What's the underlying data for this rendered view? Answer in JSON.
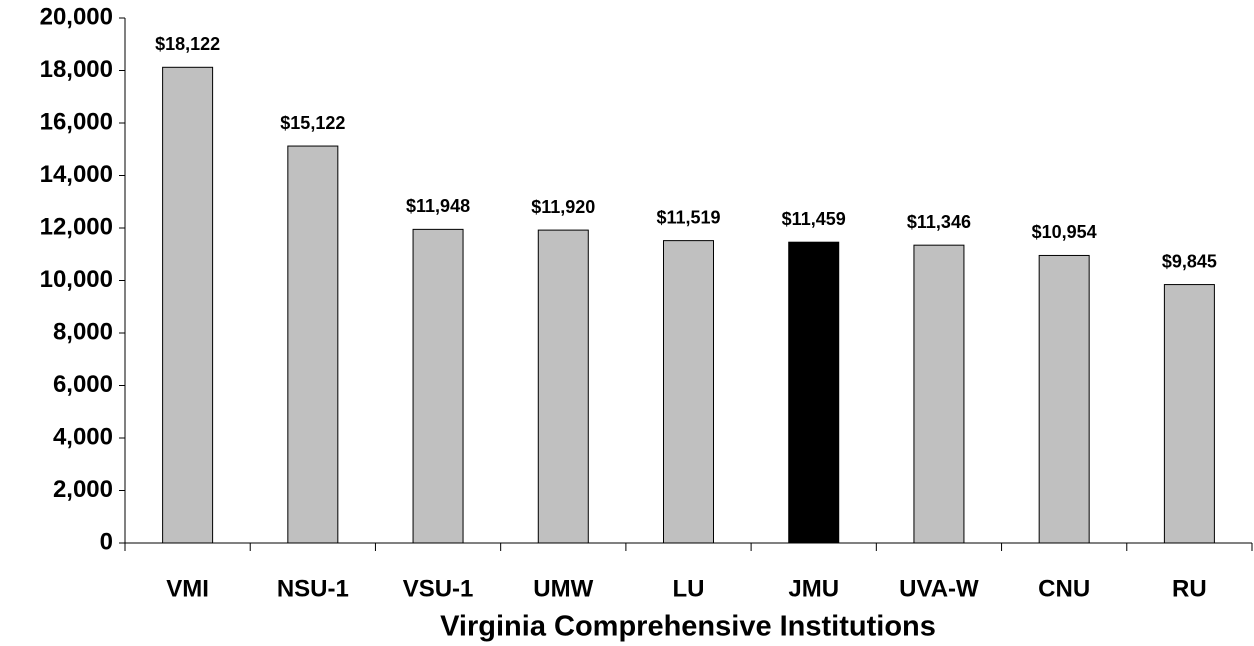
{
  "chart_data": {
    "type": "bar",
    "x_label": "Virginia Comprehensive Institutions",
    "categories": [
      "VMI",
      "NSU-1",
      "VSU-1",
      "UMW",
      "LU",
      "JMU",
      "UVA-W",
      "CNU",
      "RU"
    ],
    "values": [
      18122,
      15122,
      11948,
      11920,
      11519,
      11459,
      11346,
      10954,
      9845
    ],
    "value_labels": [
      "$18,122",
      "$15,122",
      "$11,948",
      "$11,920",
      "$11,519",
      "$11,459",
      "$11,346",
      "$10,954",
      "$9,845"
    ],
    "colors": [
      "#c0c0c0",
      "#c0c0c0",
      "#c0c0c0",
      "#c0c0c0",
      "#c0c0c0",
      "#000000",
      "#c0c0c0",
      "#c0c0c0",
      "#c0c0c0"
    ],
    "ylim": [
      0,
      20000
    ],
    "yticks": [
      0,
      {
        "value": 2000,
        "label": "2,000"
      },
      {
        "value": 4000,
        "label": "4,000"
      },
      {
        "value": 6000,
        "label": "6,000"
      },
      {
        "value": 8000,
        "label": "8,000"
      },
      {
        "value": 10000,
        "label": "10,000"
      },
      {
        "value": 12000,
        "label": "12,000"
      },
      {
        "value": 14000,
        "label": "14,000"
      },
      {
        "value": 16000,
        "label": "16,000"
      },
      {
        "value": 18000,
        "label": "18,000"
      },
      {
        "value": 20000,
        "label": "20,000"
      }
    ],
    "grid": false
  }
}
